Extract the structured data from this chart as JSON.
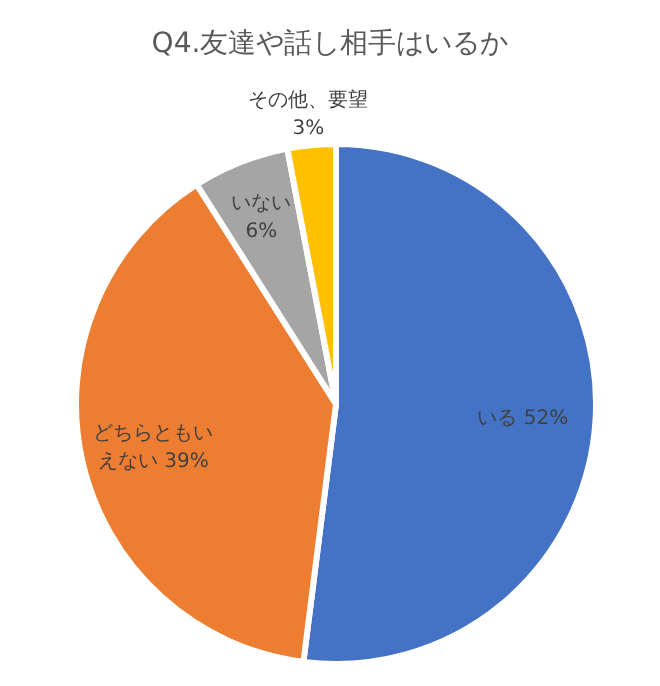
{
  "chart_data": {
    "type": "pie",
    "title": "Q4.友達や話し相手はいるか",
    "categories": [
      "いる",
      "どちらともいえない",
      "いない",
      "その他、要望"
    ],
    "values": [
      52,
      39,
      6,
      3
    ],
    "colors": [
      "#4472c4",
      "#ed7d31",
      "#a5a5a5",
      "#ffc000"
    ],
    "value_labels": [
      "52%",
      "39%",
      "6%",
      "3%"
    ]
  }
}
